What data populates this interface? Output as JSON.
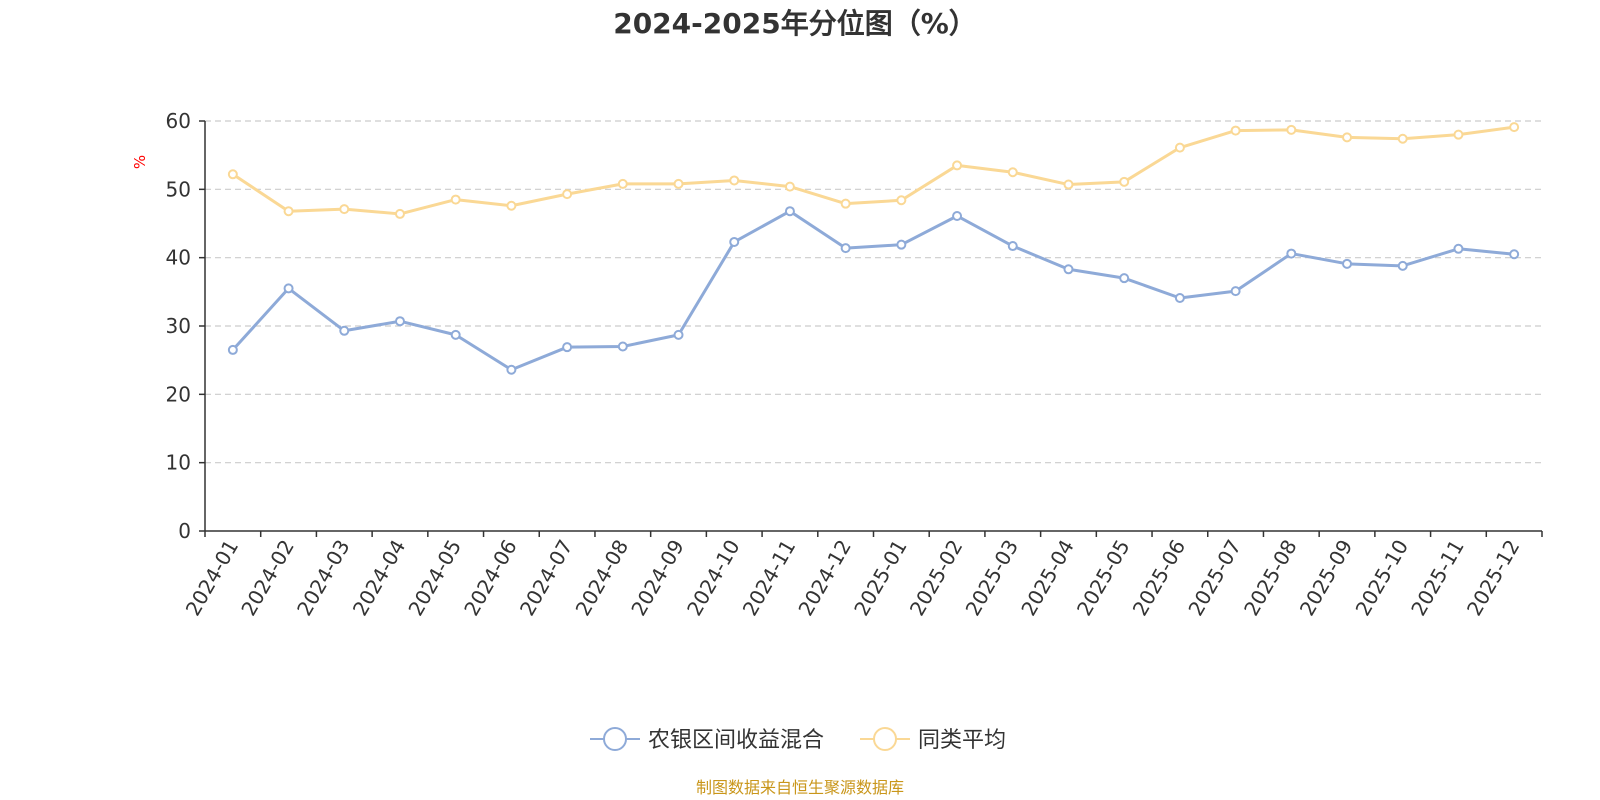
{
  "chart_data": {
    "type": "line",
    "title": "2024-2025年分位图（%）",
    "ylabel": "%",
    "ylim": [
      0,
      60
    ],
    "yticks": [
      0,
      10,
      20,
      30,
      40,
      50,
      60
    ],
    "categories": [
      "2024-01",
      "2024-02",
      "2024-03",
      "2024-04",
      "2024-05",
      "2024-06",
      "2024-07",
      "2024-08",
      "2024-09",
      "2024-10",
      "2024-11",
      "2024-12",
      "2025-01",
      "2025-02",
      "2025-03",
      "2025-04",
      "2025-05",
      "2025-06",
      "2025-07",
      "2025-08",
      "2025-09",
      "2025-10",
      "2025-11",
      "2025-12"
    ],
    "series": [
      {
        "name": "农银区间收益混合",
        "color": "#8eaad8",
        "values": [
          26.5,
          35.5,
          29.3,
          30.7,
          28.7,
          23.6,
          26.9,
          27.0,
          28.7,
          42.3,
          46.8,
          41.4,
          41.9,
          46.1,
          41.7,
          38.3,
          37.0,
          34.1,
          35.1,
          40.6,
          39.1,
          38.8,
          41.3,
          40.5
        ]
      },
      {
        "name": "同类平均",
        "color": "#fad895",
        "values": [
          52.2,
          46.8,
          47.1,
          46.4,
          48.5,
          47.6,
          49.3,
          50.8,
          50.8,
          51.3,
          50.4,
          47.9,
          48.4,
          53.5,
          52.5,
          50.7,
          51.1,
          56.1,
          58.6,
          58.7,
          57.6,
          57.4,
          58.0,
          59.1
        ]
      }
    ],
    "grid": true,
    "legend_position": "bottom"
  },
  "source": "制图数据来自恒生聚源数据库",
  "colors": {
    "ylabel": "#ff0000",
    "source": "#c9961a",
    "axis": "#333333",
    "grid": "#cccccc"
  }
}
